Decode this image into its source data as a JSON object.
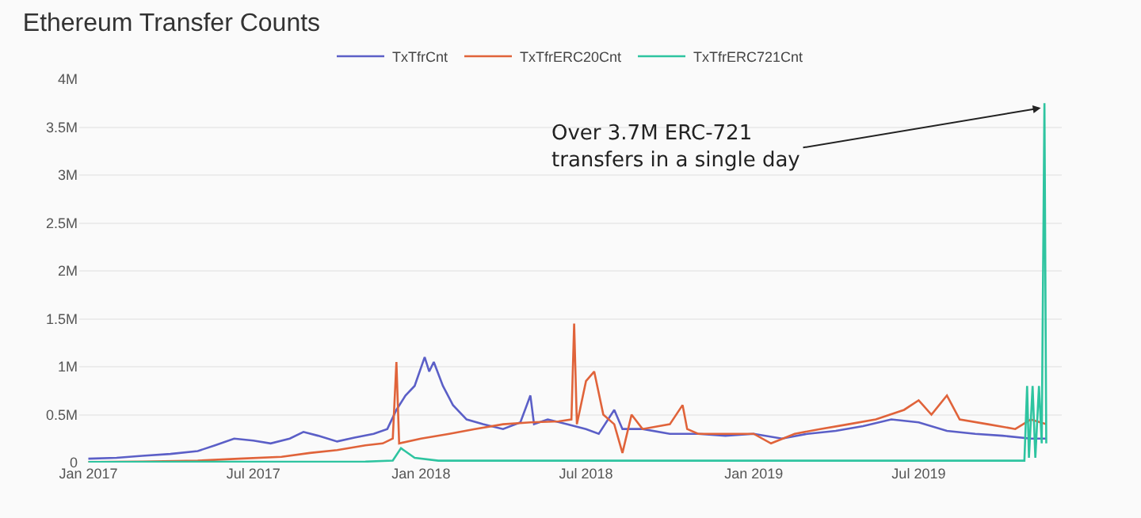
{
  "chart_data": {
    "type": "line",
    "title": "Ethereum Transfer Counts",
    "xlim": [
      "2016-12-22",
      "2019-12-05"
    ],
    "xticks": [
      {
        "value": "2017-01-01",
        "label": "Jan 2017"
      },
      {
        "value": "2017-07-01",
        "label": "Jul 2017"
      },
      {
        "value": "2018-01-01",
        "label": "Jan 2018"
      },
      {
        "value": "2018-07-01",
        "label": "Jul 2018"
      },
      {
        "value": "2019-01-01",
        "label": "Jan 2019"
      },
      {
        "value": "2019-07-01",
        "label": "Jul 2019"
      }
    ],
    "ylim": [
      0,
      4000000
    ],
    "yticks": [
      0,
      {
        "value": 500000,
        "label": "0.5M"
      },
      {
        "value": 1000000,
        "label": "1M"
      },
      {
        "value": 1500000,
        "label": "1.5M"
      },
      {
        "value": 2000000,
        "label": "2M"
      },
      {
        "value": 2500000,
        "label": "2.5M"
      },
      {
        "value": 3000000,
        "label": "3M"
      },
      {
        "value": 3500000,
        "label": "3.5M"
      },
      {
        "value": 4000000,
        "label": "4M"
      }
    ],
    "grid": "y",
    "legend": "top",
    "marker": "none",
    "line_style": "solid",
    "annotations": [
      {
        "text": "Over 3.7M ERC-721\ntransfers in a single day",
        "x": "2019-11-12",
        "y": 3700000
      }
    ],
    "series": [
      {
        "name": "TxTfrCnt",
        "color": "#5b5fc7",
        "x": [
          "2017-01-01",
          "2017-02-01",
          "2017-03-01",
          "2017-04-01",
          "2017-05-01",
          "2017-05-20",
          "2017-06-10",
          "2017-07-01",
          "2017-07-20",
          "2017-08-10",
          "2017-08-25",
          "2017-09-10",
          "2017-10-01",
          "2017-10-20",
          "2017-11-10",
          "2017-11-25",
          "2017-12-05",
          "2017-12-15",
          "2017-12-25",
          "2018-01-05",
          "2018-01-10",
          "2018-01-15",
          "2018-01-25",
          "2018-02-05",
          "2018-02-20",
          "2018-03-10",
          "2018-04-01",
          "2018-04-20",
          "2018-05-01",
          "2018-05-05",
          "2018-05-20",
          "2018-06-10",
          "2018-07-01",
          "2018-07-15",
          "2018-08-01",
          "2018-08-10",
          "2018-09-01",
          "2018-10-01",
          "2018-11-01",
          "2018-12-01",
          "2019-01-01",
          "2019-02-01",
          "2019-03-01",
          "2019-04-01",
          "2019-05-01",
          "2019-06-01",
          "2019-07-01",
          "2019-08-01",
          "2019-09-01",
          "2019-10-01",
          "2019-11-01",
          "2019-11-18"
        ],
        "values": [
          40000,
          50000,
          70000,
          90000,
          120000,
          180000,
          250000,
          230000,
          200000,
          250000,
          320000,
          280000,
          220000,
          260000,
          300000,
          350000,
          550000,
          700000,
          800000,
          1100000,
          950000,
          1050000,
          800000,
          600000,
          450000,
          400000,
          350000,
          420000,
          700000,
          400000,
          450000,
          400000,
          350000,
          300000,
          550000,
          350000,
          350000,
          300000,
          300000,
          280000,
          300000,
          250000,
          300000,
          330000,
          380000,
          450000,
          420000,
          330000,
          300000,
          280000,
          250000,
          250000
        ]
      },
      {
        "name": "TxTfrERC20Cnt",
        "color": "#e0633a",
        "x": [
          "2017-01-01",
          "2017-03-01",
          "2017-05-01",
          "2017-06-15",
          "2017-08-01",
          "2017-09-01",
          "2017-10-01",
          "2017-11-01",
          "2017-11-20",
          "2017-12-01",
          "2017-12-05",
          "2017-12-08",
          "2018-01-01",
          "2018-02-01",
          "2018-03-01",
          "2018-04-01",
          "2018-05-01",
          "2018-06-01",
          "2018-06-15",
          "2018-06-18",
          "2018-06-21",
          "2018-07-01",
          "2018-07-10",
          "2018-07-20",
          "2018-08-01",
          "2018-08-10",
          "2018-08-20",
          "2018-09-01",
          "2018-10-01",
          "2018-10-15",
          "2018-10-20",
          "2018-11-01",
          "2018-12-01",
          "2019-01-01",
          "2019-01-20",
          "2019-02-15",
          "2019-03-15",
          "2019-04-15",
          "2019-05-15",
          "2019-06-15",
          "2019-07-01",
          "2019-07-15",
          "2019-08-01",
          "2019-08-15",
          "2019-09-15",
          "2019-10-15",
          "2019-11-01",
          "2019-11-18"
        ],
        "values": [
          5000,
          10000,
          20000,
          40000,
          60000,
          100000,
          130000,
          180000,
          200000,
          250000,
          1050000,
          200000,
          250000,
          300000,
          350000,
          400000,
          420000,
          430000,
          450000,
          1450000,
          400000,
          850000,
          950000,
          500000,
          400000,
          100000,
          500000,
          350000,
          400000,
          600000,
          350000,
          300000,
          300000,
          300000,
          200000,
          300000,
          350000,
          400000,
          450000,
          550000,
          650000,
          500000,
          700000,
          450000,
          400000,
          350000,
          450000,
          400000
        ]
      },
      {
        "name": "TxTfrERC721Cnt",
        "color": "#2ec4a0",
        "x": [
          "2017-01-01",
          "2017-11-01",
          "2017-12-01",
          "2017-12-10",
          "2017-12-25",
          "2018-01-20",
          "2019-10-25",
          "2019-10-28",
          "2019-10-30",
          "2019-11-03",
          "2019-11-06",
          "2019-11-10",
          "2019-11-13",
          "2019-11-16",
          "2019-11-18"
        ],
        "values": [
          5000,
          10000,
          20000,
          150000,
          50000,
          20000,
          20000,
          800000,
          50000,
          800000,
          50000,
          800000,
          200000,
          3750000,
          200000
        ]
      }
    ]
  }
}
